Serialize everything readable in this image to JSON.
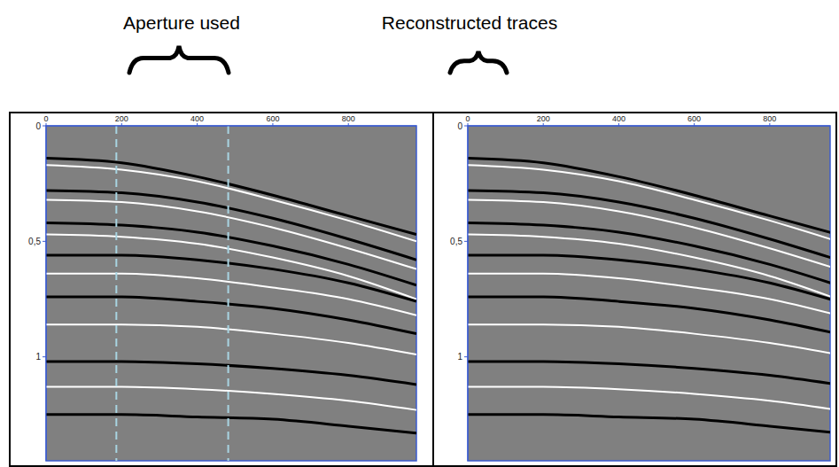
{
  "chart_data": [
    {
      "type": "line",
      "title": "Aperture used",
      "x": [
        0,
        200,
        400,
        600,
        800,
        980
      ],
      "xlim": [
        0,
        980
      ],
      "xticks": [
        0,
        200,
        400,
        600,
        800
      ],
      "ylim": [
        0,
        1.45
      ],
      "yticks": [
        0,
        {
          "value": 0.5,
          "label": "0,5"
        },
        1
      ],
      "aperture": [
        186,
        482
      ],
      "series": [
        {
          "color": "#000000",
          "values": [
            0.14,
            0.16,
            0.22,
            0.3,
            0.39,
            0.47
          ]
        },
        {
          "color": "#ffffff",
          "values": [
            0.17,
            0.19,
            0.24,
            0.32,
            0.41,
            0.5
          ]
        },
        {
          "color": "#000000",
          "values": [
            0.28,
            0.29,
            0.33,
            0.4,
            0.49,
            0.58
          ]
        },
        {
          "color": "#ffffff",
          "values": [
            0.32,
            0.33,
            0.37,
            0.44,
            0.53,
            0.62
          ]
        },
        {
          "color": "#000000",
          "values": [
            0.42,
            0.43,
            0.46,
            0.52,
            0.6,
            0.69
          ]
        },
        {
          "color": "#ffffff",
          "values": [
            0.47,
            0.48,
            0.51,
            0.57,
            0.65,
            0.75
          ]
        },
        {
          "color": "#000000",
          "values": [
            0.56,
            0.56,
            0.58,
            0.62,
            0.68,
            0.76
          ]
        },
        {
          "color": "#ffffff",
          "values": [
            0.64,
            0.64,
            0.66,
            0.7,
            0.75,
            0.82
          ]
        },
        {
          "color": "#000000",
          "values": [
            0.74,
            0.74,
            0.76,
            0.79,
            0.84,
            0.9
          ]
        },
        {
          "color": "#ffffff",
          "values": [
            0.86,
            0.86,
            0.87,
            0.9,
            0.94,
            0.99
          ]
        },
        {
          "color": "#000000",
          "values": [
            1.02,
            1.02,
            1.03,
            1.05,
            1.08,
            1.12
          ]
        },
        {
          "color": "#ffffff",
          "values": [
            1.13,
            1.13,
            1.14,
            1.16,
            1.19,
            1.23
          ]
        },
        {
          "color": "#000000",
          "values": [
            1.25,
            1.25,
            1.26,
            1.27,
            1.3,
            1.33
          ]
        }
      ]
    },
    {
      "type": "line",
      "title": "Reconstructed traces",
      "x": [
        0,
        200,
        400,
        600,
        800,
        980
      ],
      "xlim": [
        0,
        960
      ],
      "xticks": [
        0,
        200,
        400,
        600,
        800
      ],
      "ylim": [
        0,
        1.45
      ],
      "yticks": [
        0,
        {
          "value": 0.5,
          "label": "0,5"
        },
        1
      ],
      "series": [
        {
          "color": "#000000",
          "values": [
            0.14,
            0.16,
            0.22,
            0.3,
            0.39,
            0.47
          ]
        },
        {
          "color": "#ffffff",
          "values": [
            0.17,
            0.19,
            0.24,
            0.32,
            0.41,
            0.5
          ]
        },
        {
          "color": "#000000",
          "values": [
            0.28,
            0.29,
            0.33,
            0.4,
            0.49,
            0.58
          ]
        },
        {
          "color": "#ffffff",
          "values": [
            0.32,
            0.33,
            0.37,
            0.44,
            0.53,
            0.62
          ]
        },
        {
          "color": "#000000",
          "values": [
            0.42,
            0.43,
            0.46,
            0.52,
            0.6,
            0.69
          ]
        },
        {
          "color": "#ffffff",
          "values": [
            0.47,
            0.48,
            0.51,
            0.57,
            0.65,
            0.75
          ]
        },
        {
          "color": "#000000",
          "values": [
            0.56,
            0.56,
            0.58,
            0.62,
            0.68,
            0.76
          ]
        },
        {
          "color": "#ffffff",
          "values": [
            0.64,
            0.64,
            0.66,
            0.7,
            0.75,
            0.82
          ]
        },
        {
          "color": "#000000",
          "values": [
            0.74,
            0.74,
            0.76,
            0.79,
            0.84,
            0.9
          ]
        },
        {
          "color": "#ffffff",
          "values": [
            0.86,
            0.86,
            0.87,
            0.9,
            0.94,
            0.99
          ]
        },
        {
          "color": "#000000",
          "values": [
            1.02,
            1.02,
            1.03,
            1.05,
            1.08,
            1.12
          ]
        },
        {
          "color": "#ffffff",
          "values": [
            1.13,
            1.13,
            1.14,
            1.16,
            1.19,
            1.23
          ]
        },
        {
          "color": "#000000",
          "values": [
            1.25,
            1.25,
            1.26,
            1.27,
            1.3,
            1.33
          ]
        }
      ]
    }
  ]
}
